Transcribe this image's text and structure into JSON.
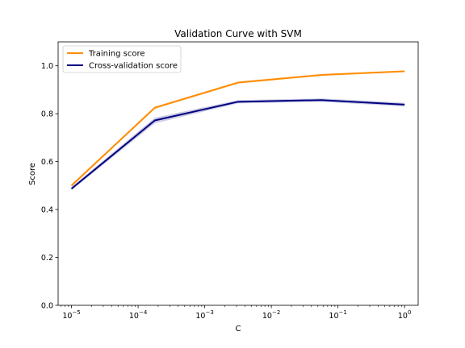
{
  "chart_data": {
    "type": "line",
    "title": "Validation Curve with SVM",
    "xlabel": "C",
    "ylabel": "Score",
    "x_scale": "log",
    "x_tick_labels": [
      "10^-5",
      "10^-4",
      "10^-3",
      "10^-2",
      "10^-1",
      "10^0"
    ],
    "y_tick_labels": [
      "0.0",
      "0.2",
      "0.4",
      "0.6",
      "0.8",
      "1.0"
    ],
    "x_tick_values": [
      1e-05,
      0.0001,
      0.001,
      0.01,
      0.1,
      1
    ],
    "y_tick_values": [
      0.0,
      0.2,
      0.4,
      0.6,
      0.8,
      1.0
    ],
    "xlim": [
      6.3e-06,
      1.6
    ],
    "ylim": [
      0.0,
      1.1
    ],
    "x": [
      1e-05,
      0.000178,
      0.00316,
      0.0562,
      1.0
    ],
    "series": [
      {
        "name": "Training score",
        "color": "#ff8c00",
        "values": [
          0.5,
          0.825,
          0.93,
          0.962,
          0.977
        ],
        "band_lower": [
          0.495,
          0.82,
          0.925,
          0.958,
          0.973
        ],
        "band_upper": [
          0.505,
          0.83,
          0.935,
          0.966,
          0.981
        ]
      },
      {
        "name": "Cross-validation score",
        "color": "#000080",
        "values": [
          0.487,
          0.772,
          0.85,
          0.857,
          0.838
        ],
        "band_lower": [
          0.48,
          0.76,
          0.843,
          0.85,
          0.83
        ],
        "band_upper": [
          0.494,
          0.784,
          0.857,
          0.864,
          0.846
        ]
      }
    ],
    "legend_position": "top-left",
    "grid": false
  }
}
